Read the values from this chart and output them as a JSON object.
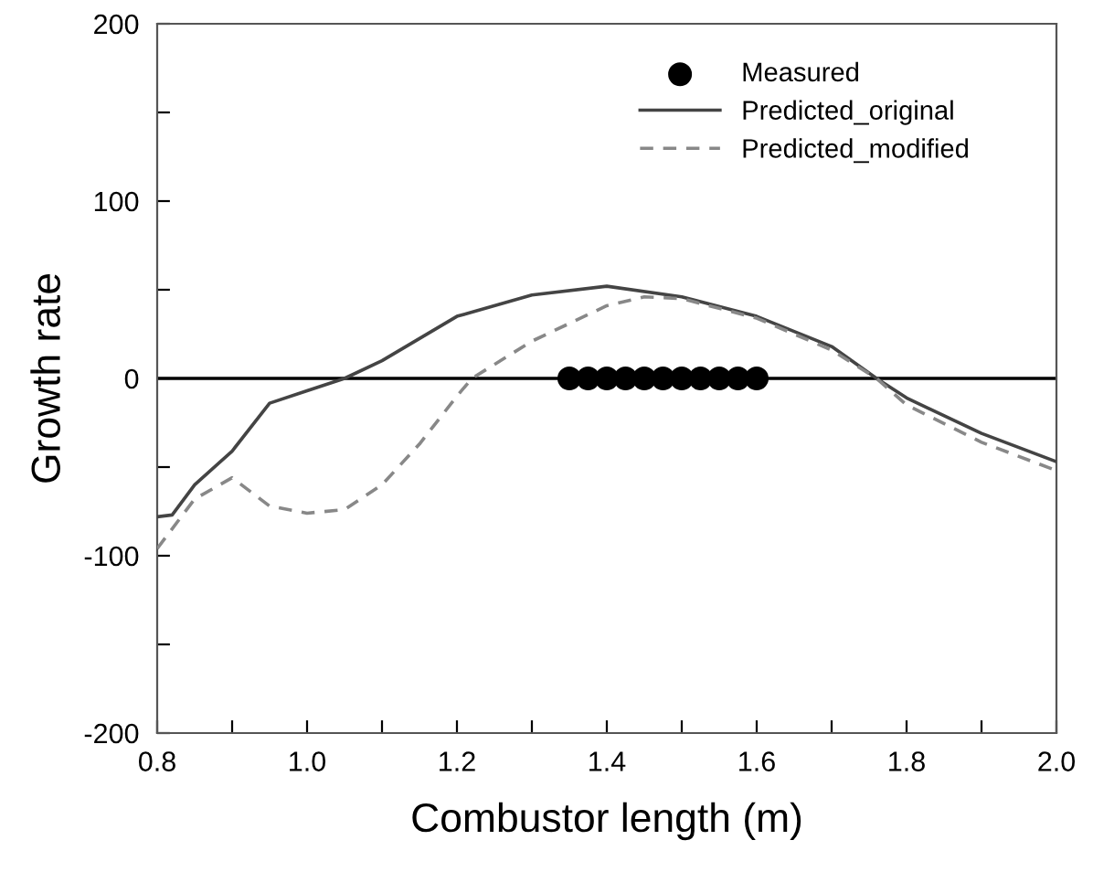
{
  "chart_data": {
    "type": "line",
    "xlabel": "Combustor length (m)",
    "ylabel": "Growth rate",
    "xlim": [
      0.8,
      2.0
    ],
    "ylim": [
      -200,
      200
    ],
    "xticks": [
      {
        "value": 0.8,
        "label": "0.8"
      },
      {
        "value": 0.9,
        "label": null
      },
      {
        "value": 1.0,
        "label": "1.0"
      },
      {
        "value": 1.1,
        "label": null
      },
      {
        "value": 1.2,
        "label": "1.2"
      },
      {
        "value": 1.3,
        "label": null
      },
      {
        "value": 1.4,
        "label": "1.4"
      },
      {
        "value": 1.5,
        "label": null
      },
      {
        "value": 1.6,
        "label": "1.6"
      },
      {
        "value": 1.7,
        "label": null
      },
      {
        "value": 1.8,
        "label": "1.8"
      },
      {
        "value": 1.9,
        "label": null
      },
      {
        "value": 2.0,
        "label": "2.0"
      }
    ],
    "yticks": [
      -200,
      {
        "value": -150,
        "label": null
      },
      -100,
      {
        "value": -50,
        "label": null
      },
      0,
      {
        "value": 50,
        "label": null
      },
      100,
      {
        "value": 150,
        "label": null
      },
      200
    ],
    "ref_lines": [
      {
        "axis": "y",
        "value": 0,
        "color": "#000000",
        "line_style": "solid"
      }
    ],
    "legend": "top right",
    "grid": false,
    "series": [
      {
        "name": "Measured",
        "type": "scatter",
        "marker": "circle",
        "color": "#000000",
        "x": [
          1.35,
          1.375,
          1.4,
          1.425,
          1.45,
          1.475,
          1.5,
          1.525,
          1.55,
          1.575,
          1.6
        ],
        "values": [
          0,
          0,
          0,
          0,
          0,
          0,
          0,
          0,
          0,
          0,
          0
        ]
      },
      {
        "name": "Predicted_original",
        "line_style": "solid",
        "color": "#444444",
        "x": [
          0.8,
          0.82,
          0.85,
          0.9,
          0.95,
          1.0,
          1.05,
          1.1,
          1.2,
          1.3,
          1.4,
          1.5,
          1.6,
          1.7,
          1.76,
          1.8,
          1.9,
          2.0
        ],
        "values": [
          -78,
          -77,
          -60,
          -41,
          -14,
          -7,
          0,
          10,
          35,
          47,
          52,
          46,
          35,
          18,
          0,
          -11,
          -31,
          -47
        ]
      },
      {
        "name": "Predicted_modified",
        "line_style": "dashed",
        "color": "#888888",
        "x": [
          0.8,
          0.85,
          0.9,
          0.95,
          1.0,
          1.05,
          1.1,
          1.15,
          1.2,
          1.22,
          1.3,
          1.4,
          1.45,
          1.5,
          1.6,
          1.7,
          1.76,
          1.8,
          1.9,
          2.0
        ],
        "values": [
          -96,
          -68,
          -56,
          -72,
          -76,
          -74,
          -60,
          -37,
          -10,
          0,
          21,
          41,
          46,
          45,
          34,
          16,
          0,
          -15,
          -36,
          -52
        ]
      }
    ]
  }
}
